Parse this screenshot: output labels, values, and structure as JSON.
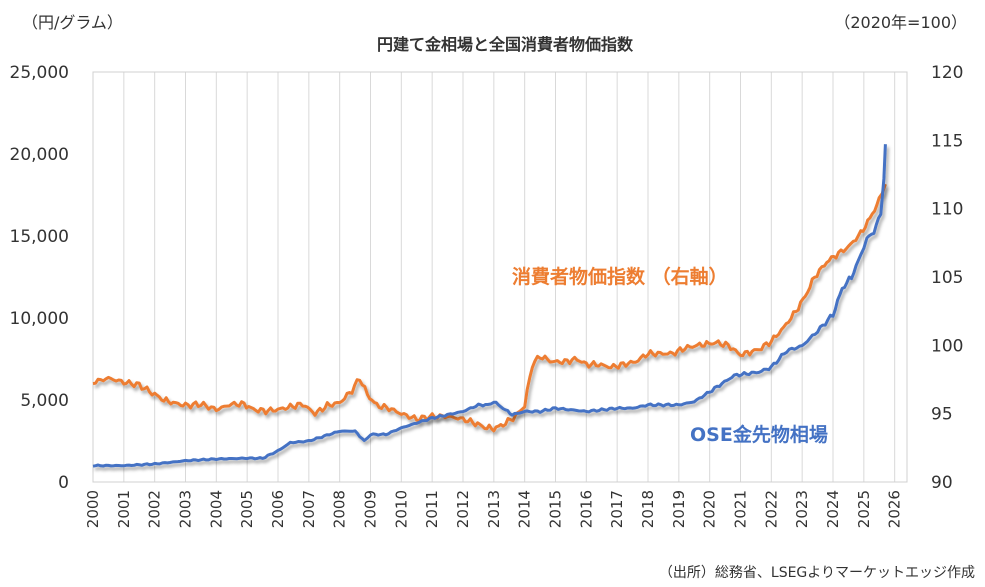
{
  "chart_data": {
    "type": "line",
    "title": "円建て金相場と全国消費者物価指数",
    "y_left_unit": "（円/グラム）",
    "y_right_unit": "（2020年=100）",
    "source": "（出所）総務省、LSEGよりマーケットエッジ作成",
    "x_ticks": [
      "2000",
      "2001",
      "2002",
      "2003",
      "2004",
      "2005",
      "2006",
      "2007",
      "2008",
      "2009",
      "2010",
      "2011",
      "2012",
      "2013",
      "2014",
      "2015",
      "2016",
      "2017",
      "2018",
      "2019",
      "2020",
      "2021",
      "2022",
      "2023",
      "2024",
      "2025",
      "2026"
    ],
    "y_left": {
      "min": 0,
      "max": 25000,
      "ticks": [
        "0",
        "5,000",
        "10,000",
        "15,000",
        "20,000",
        "25,000"
      ]
    },
    "y_right": {
      "min": 90,
      "max": 120,
      "ticks": [
        "90",
        "95",
        "100",
        "105",
        "110",
        "115",
        "120"
      ]
    },
    "grid": "vertical",
    "series": [
      {
        "name": "消費者物価指数 （右軸）",
        "axis": "right",
        "color": "#ED7D31",
        "x": [
          2000.0,
          2000.5,
          2001.0,
          2001.5,
          2002.0,
          2002.3,
          2002.6,
          2003.0,
          2003.5,
          2004.0,
          2004.5,
          2004.9,
          2005.2,
          2005.6,
          2006.0,
          2006.4,
          2006.8,
          2007.2,
          2007.6,
          2008.0,
          2008.4,
          2008.65,
          2008.9,
          2009.2,
          2009.6,
          2010.0,
          2010.5,
          2011.0,
          2011.5,
          2012.0,
          2012.4,
          2012.7,
          2013.0,
          2013.3,
          2013.7,
          2014.0,
          2014.25,
          2014.5,
          2014.9,
          2015.3,
          2015.7,
          2016.0,
          2016.4,
          2016.8,
          2017.2,
          2017.6,
          2018.0,
          2018.4,
          2018.8,
          2019.2,
          2019.6,
          2019.9,
          2020.2,
          2020.6,
          2021.0,
          2021.3,
          2021.6,
          2022.0,
          2022.4,
          2022.8,
          2023.1,
          2023.4,
          2023.8,
          2024.1,
          2024.5,
          2024.9,
          2025.2,
          2025.5,
          2025.7
        ],
        "values": [
          97.3,
          97.6,
          97.3,
          97.1,
          96.4,
          96.0,
          95.8,
          95.6,
          95.7,
          95.3,
          95.7,
          95.7,
          95.3,
          95.2,
          95.3,
          95.5,
          95.7,
          95.0,
          95.6,
          95.8,
          96.7,
          97.6,
          96.4,
          95.6,
          95.4,
          95.0,
          94.6,
          94.8,
          94.8,
          94.6,
          94.3,
          94.0,
          93.9,
          94.2,
          94.8,
          95.6,
          98.6,
          99.2,
          98.8,
          98.8,
          99.0,
          98.6,
          98.6,
          98.4,
          98.6,
          98.8,
          99.4,
          99.4,
          99.4,
          99.8,
          100.0,
          100.1,
          100.2,
          100.0,
          99.3,
          99.5,
          99.7,
          100.3,
          101.3,
          102.5,
          103.6,
          105.0,
          106.1,
          106.6,
          107.2,
          108.2,
          109.3,
          110.6,
          111.8
        ]
      },
      {
        "name": "OSE金先物相場",
        "axis": "left",
        "color": "#4472C4",
        "x": [
          2000.0,
          2001.0,
          2002.0,
          2003.0,
          2004.0,
          2005.0,
          2005.5,
          2006.0,
          2006.4,
          2007.0,
          2007.5,
          2008.0,
          2008.5,
          2008.8,
          2009.0,
          2009.5,
          2010.0,
          2010.5,
          2011.0,
          2011.5,
          2012.0,
          2012.5,
          2012.8,
          2013.0,
          2013.3,
          2013.6,
          2014.0,
          2014.5,
          2015.0,
          2015.5,
          2016.0,
          2016.5,
          2017.0,
          2017.5,
          2018.0,
          2018.5,
          2019.0,
          2019.5,
          2020.0,
          2020.4,
          2020.8,
          2021.2,
          2021.6,
          2022.0,
          2022.5,
          2023.0,
          2023.5,
          2024.0,
          2024.3,
          2024.6,
          2024.9,
          2025.1,
          2025.4,
          2025.55,
          2025.65,
          2025.7
        ],
        "values": [
          1000,
          1000,
          1100,
          1300,
          1400,
          1450,
          1450,
          1900,
          2400,
          2500,
          2800,
          3100,
          3100,
          2500,
          2900,
          2900,
          3300,
          3600,
          3900,
          4100,
          4300,
          4700,
          4700,
          4900,
          4500,
          4100,
          4300,
          4300,
          4500,
          4400,
          4300,
          4400,
          4500,
          4500,
          4700,
          4700,
          4700,
          4900,
          5500,
          6000,
          6500,
          6600,
          6700,
          7000,
          8000,
          8300,
          9200,
          10200,
          11800,
          12500,
          13800,
          14800,
          15500,
          16500,
          18500,
          20600
        ]
      }
    ],
    "annotations": [
      {
        "text": "消費者物価指数 （右軸）",
        "series": "消費者物価指数 （右軸）"
      },
      {
        "text": "OSE金先物相場",
        "series": "OSE金先物相場"
      }
    ]
  }
}
